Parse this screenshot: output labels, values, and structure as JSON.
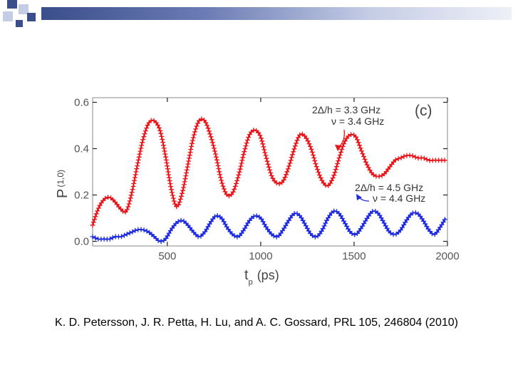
{
  "colors": {
    "deco_blue": "#3a4e8c",
    "deco_light": "#c5cde6",
    "series_red": "#e8161b",
    "series_blue": "#1e2be0"
  },
  "chart_data": {
    "type": "line",
    "panel_tag": "(c)",
    "xlabel_main": "t",
    "xlabel_sub": "p",
    "xlabel_unit": "(ps)",
    "ylabel_main": "P",
    "ylabel_sub": "(1,0)",
    "xlim": [
      100,
      2000
    ],
    "ylim": [
      -0.02,
      0.62
    ],
    "x_ticks": [
      500,
      1000,
      1500,
      2000
    ],
    "x_tick_labels": [
      "500",
      "1000",
      "1500",
      "2000"
    ],
    "y_ticks": [
      0.0,
      0.2,
      0.4,
      0.6
    ],
    "y_tick_labels": [
      "0.0",
      "0.2",
      "0.4",
      "0.6"
    ],
    "series": [
      {
        "color": "#e8161b",
        "x": [
          100,
          130,
          160,
          190,
          220,
          250,
          280,
          310,
          340,
          370,
          400,
          430,
          460,
          490,
          520,
          550,
          580,
          610,
          640,
          670,
          700,
          730,
          760,
          790,
          820,
          850,
          880,
          910,
          940,
          970,
          1000,
          1030,
          1060,
          1090,
          1120,
          1150,
          1180,
          1210,
          1240,
          1270,
          1300,
          1330,
          1360,
          1390,
          1420,
          1450,
          1480,
          1510,
          1540,
          1570,
          1600,
          1630,
          1660,
          1690,
          1720,
          1750,
          1780,
          1810,
          1840,
          1870,
          1900,
          1930,
          1960,
          1990
        ],
        "values": [
          0.07,
          0.14,
          0.18,
          0.19,
          0.17,
          0.14,
          0.13,
          0.21,
          0.33,
          0.44,
          0.51,
          0.52,
          0.48,
          0.37,
          0.23,
          0.15,
          0.21,
          0.33,
          0.45,
          0.52,
          0.52,
          0.46,
          0.37,
          0.26,
          0.2,
          0.21,
          0.28,
          0.38,
          0.46,
          0.48,
          0.45,
          0.36,
          0.28,
          0.25,
          0.26,
          0.32,
          0.4,
          0.46,
          0.45,
          0.4,
          0.32,
          0.26,
          0.24,
          0.28,
          0.36,
          0.43,
          0.46,
          0.45,
          0.39,
          0.33,
          0.29,
          0.28,
          0.29,
          0.32,
          0.35,
          0.36,
          0.37,
          0.37,
          0.36,
          0.36,
          0.35,
          0.35,
          0.35,
          0.35
        ]
      },
      {
        "color": "#1e2be0",
        "x": [
          100,
          130,
          160,
          190,
          220,
          250,
          280,
          310,
          340,
          370,
          400,
          430,
          460,
          490,
          520,
          550,
          580,
          610,
          640,
          670,
          700,
          730,
          760,
          790,
          820,
          850,
          880,
          910,
          940,
          970,
          1000,
          1030,
          1060,
          1090,
          1120,
          1150,
          1180,
          1210,
          1240,
          1270,
          1300,
          1330,
          1360,
          1390,
          1420,
          1450,
          1480,
          1510,
          1540,
          1570,
          1600,
          1630,
          1660,
          1690,
          1720,
          1750,
          1780,
          1810,
          1840,
          1870,
          1900,
          1930,
          1960,
          1990
        ],
        "values": [
          0.02,
          0.01,
          0.01,
          0.01,
          0.02,
          0.02,
          0.03,
          0.04,
          0.05,
          0.05,
          0.04,
          0.02,
          0.0,
          0.01,
          0.05,
          0.08,
          0.09,
          0.07,
          0.04,
          0.02,
          0.04,
          0.08,
          0.11,
          0.1,
          0.06,
          0.03,
          0.02,
          0.05,
          0.09,
          0.11,
          0.1,
          0.06,
          0.03,
          0.02,
          0.05,
          0.09,
          0.12,
          0.11,
          0.07,
          0.03,
          0.02,
          0.05,
          0.1,
          0.13,
          0.12,
          0.08,
          0.04,
          0.03,
          0.06,
          0.1,
          0.13,
          0.12,
          0.08,
          0.04,
          0.03,
          0.05,
          0.09,
          0.12,
          0.12,
          0.09,
          0.05,
          0.03,
          0.06,
          0.1
        ]
      }
    ],
    "annotations": [
      {
        "text": "2Δ/h = 3.3 GHz"
      },
      {
        "text": "ν = 3.4 GHz"
      },
      {
        "text": "2Δ/h = 4.5 GHz"
      },
      {
        "text": "ν = 4.4 GHz"
      }
    ]
  },
  "citation": "K. D. Petersson, J. R. Petta, H. Lu, and A. C. Gossard, PRL 105, 246804 (2010)"
}
